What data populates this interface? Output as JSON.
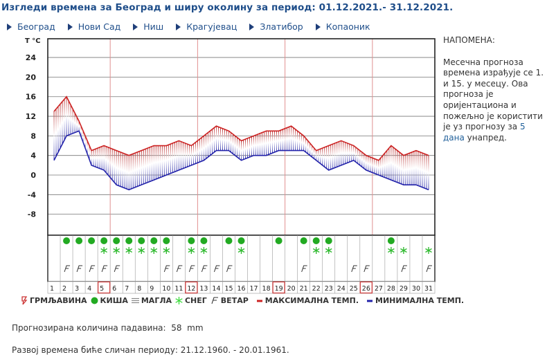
{
  "header": {
    "title": "Изгледи времена за Београд и ширу околину за период: 01.12.2021.- 31.12.2021."
  },
  "nav": {
    "items": [
      {
        "label": "Београд"
      },
      {
        "label": "Нови Сад"
      },
      {
        "label": "Ниш"
      },
      {
        "label": "Крагујевац"
      },
      {
        "label": "Златибор"
      },
      {
        "label": "Копаоник"
      }
    ]
  },
  "note": {
    "heading": "НАПОМЕНА:",
    "text_before_link": "Месечна прогноза времена израђује се 1. и 15. у месецу. Ова прогноза је оријентациона и пожељно је користити је уз прогнозу за ",
    "link": "5 дана",
    "text_after_link": " унапред."
  },
  "legend": {
    "items": [
      {
        "key": "thunder",
        "label": "ГРМЉАВИНА",
        "color": "#cc3333"
      },
      {
        "key": "rain",
        "label": "КИША",
        "color": "#22aa22"
      },
      {
        "key": "fog",
        "label": "МАГЛА",
        "color": "#888888"
      },
      {
        "key": "snow",
        "label": "СНЕГ",
        "color": "#44dd44"
      },
      {
        "key": "wind",
        "label": "ВЕТАР",
        "color": "#333333"
      },
      {
        "key": "max",
        "label": "МАКСИМАЛНА ТЕМП.",
        "color": "#cc2222"
      },
      {
        "key": "min",
        "label": "МИНИМАЛНА ТЕМП.",
        "color": "#2222aa"
      }
    ]
  },
  "info": {
    "precip_label": "Прогнозирана количина падавина:",
    "precip_value": "58",
    "precip_unit": "mm",
    "similar_label": "Развој времена биће сличан периоду:",
    "similar_period": "21.12.1960. - 20.01.1961."
  },
  "chart_data": {
    "type": "line",
    "title": "Изгледи времена за Београд и ширу околину за период: 01.12.2021.- 31.12.2021.",
    "ylabel": "T °C",
    "xlabel": "",
    "ylim": [
      -12,
      28
    ],
    "yticks": [
      24,
      20,
      16,
      12,
      8,
      4,
      0,
      -4,
      -8
    ],
    "grid": true,
    "highlighted_days": [
      5,
      12,
      19,
      26
    ],
    "x": [
      1,
      2,
      3,
      4,
      5,
      6,
      7,
      8,
      9,
      10,
      11,
      12,
      13,
      14,
      15,
      16,
      17,
      18,
      19,
      20,
      21,
      22,
      23,
      24,
      25,
      26,
      27,
      28,
      29,
      30,
      31
    ],
    "series": [
      {
        "name": "МАКСИМАЛНА ТЕМП.",
        "color": "#cc2222",
        "values": [
          13,
          16,
          11,
          5,
          6,
          5,
          4,
          5,
          6,
          6,
          7,
          6,
          8,
          10,
          9,
          7,
          8,
          9,
          9,
          10,
          8,
          5,
          6,
          7,
          6,
          4,
          3,
          6,
          4,
          5,
          4
        ]
      },
      {
        "name": "МИНИМАЛНА ТЕМП.",
        "color": "#2222aa",
        "values": [
          3,
          8,
          9,
          2,
          1,
          -2,
          -3,
          -2,
          -1,
          0,
          1,
          2,
          3,
          5,
          5,
          3,
          4,
          4,
          5,
          5,
          5,
          3,
          1,
          2,
          3,
          1,
          0,
          -1,
          -2,
          -2,
          -3
        ]
      }
    ],
    "weather_symbols": {
      "rain": [
        2,
        3,
        4,
        5,
        6,
        7,
        8,
        9,
        10,
        12,
        13,
        15,
        16,
        19,
        21,
        22,
        23,
        28
      ],
      "snow": [
        5,
        6,
        7,
        8,
        9,
        10,
        12,
        13,
        16,
        22,
        23,
        28,
        29,
        31
      ],
      "wind": [
        2,
        3,
        4,
        5,
        6,
        10,
        11,
        12,
        13,
        14,
        15,
        21,
        25,
        26,
        29,
        31
      ],
      "thunder": [],
      "fog": []
    },
    "legend_position": "bottom"
  }
}
